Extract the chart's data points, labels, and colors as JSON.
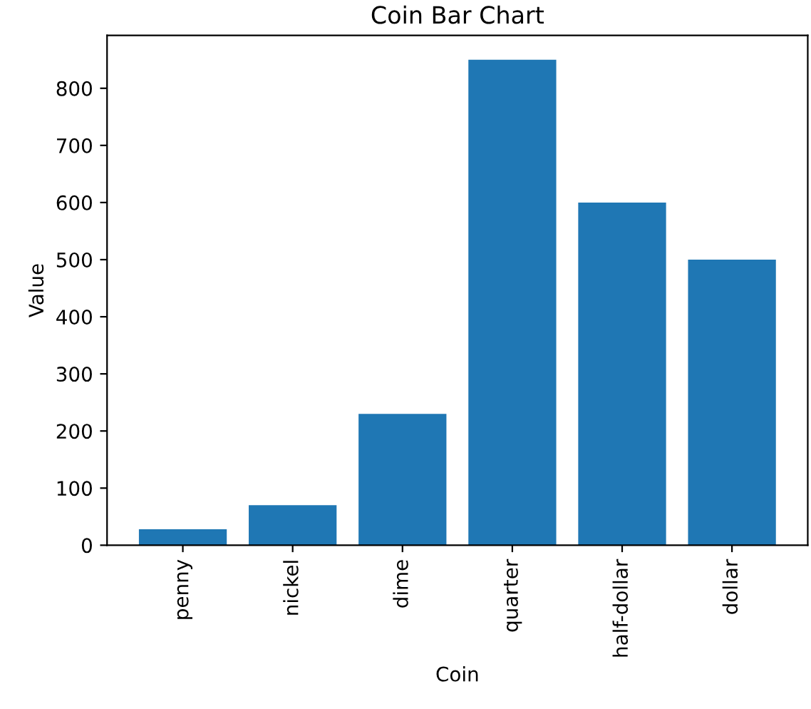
{
  "chart_data": {
    "type": "bar",
    "title": "Coin Bar Chart",
    "xlabel": "Coin",
    "ylabel": "Value",
    "categories": [
      "penny",
      "nickel",
      "dime",
      "quarter",
      "half-dollar",
      "dollar"
    ],
    "values": [
      28,
      70,
      230,
      850,
      600,
      500
    ],
    "color": "#1f77b4",
    "ylim": [
      0,
      892.5
    ],
    "yticks": [
      0,
      100,
      200,
      300,
      400,
      500,
      600,
      700,
      800
    ],
    "grid": false,
    "legend": false
  }
}
